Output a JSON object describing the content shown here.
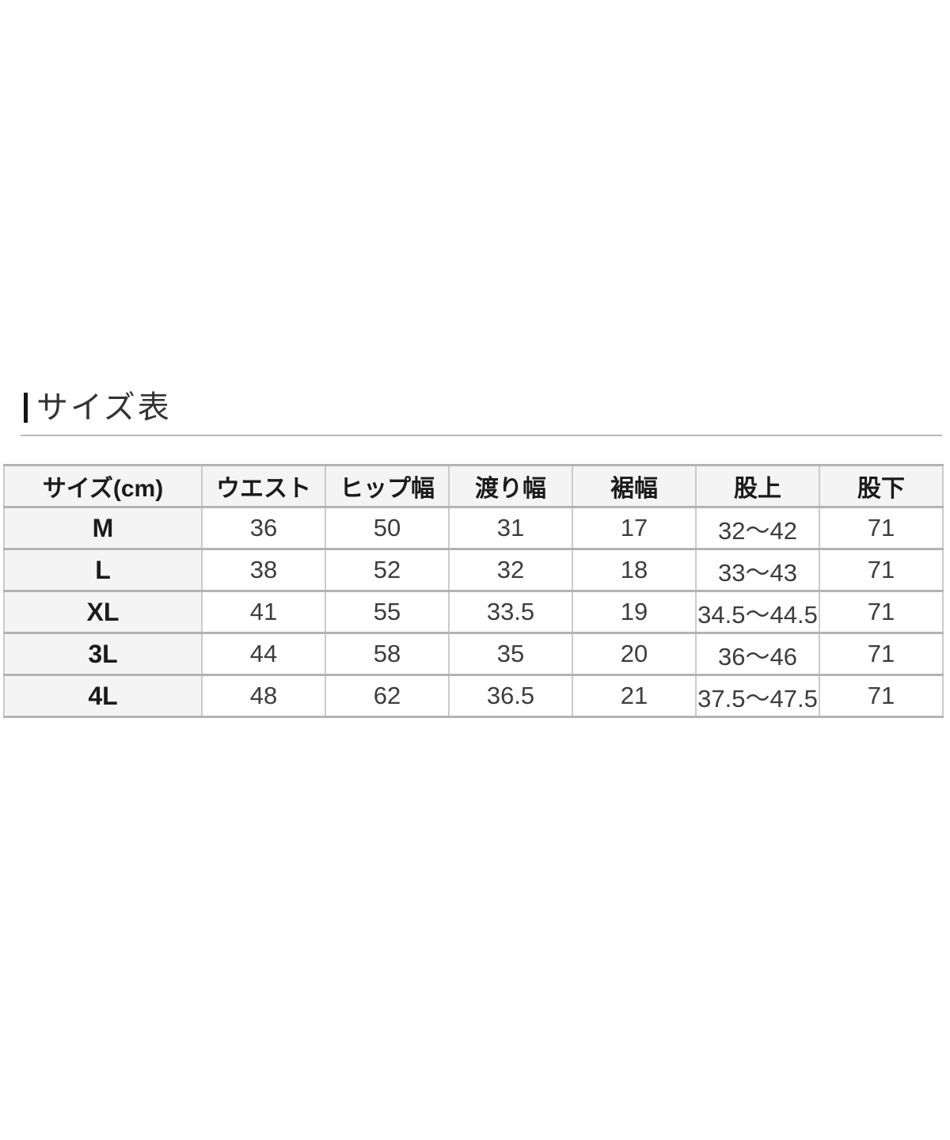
{
  "page": {
    "title": "サイズ表"
  },
  "size_table": {
    "columns": [
      "サイズ(cm)",
      "ウエスト",
      "ヒップ幅",
      "渡り幅",
      "裾幅",
      "股上",
      "股下"
    ],
    "rows": [
      {
        "size": "M",
        "values": [
          "36",
          "50",
          "31",
          "17",
          "32～42",
          "71"
        ]
      },
      {
        "size": "L",
        "values": [
          "38",
          "52",
          "32",
          "18",
          "33～43",
          "71"
        ]
      },
      {
        "size": "XL",
        "values": [
          "41",
          "55",
          "33.5",
          "19",
          "34.5～44.5",
          "71"
        ]
      },
      {
        "size": "3L",
        "values": [
          "44",
          "58",
          "35",
          "20",
          "36～46",
          "71"
        ]
      },
      {
        "size": "4L",
        "values": [
          "48",
          "62",
          "36.5",
          "21",
          "37.5～47.5",
          "71"
        ]
      }
    ]
  },
  "colors": {
    "title_text": "#333333",
    "title_accent_bar": "#151515",
    "divider": "#b9b9b9",
    "header_bg": "#f4f4f4",
    "row_label_bg": "#f4f4f4",
    "cell_bg": "#ffffff",
    "border_horizontal": "#b3b3b3",
    "border_vertical": "#cbcbcb",
    "header_text": "#1b1b1b",
    "cell_text": "#3d3d3d"
  }
}
